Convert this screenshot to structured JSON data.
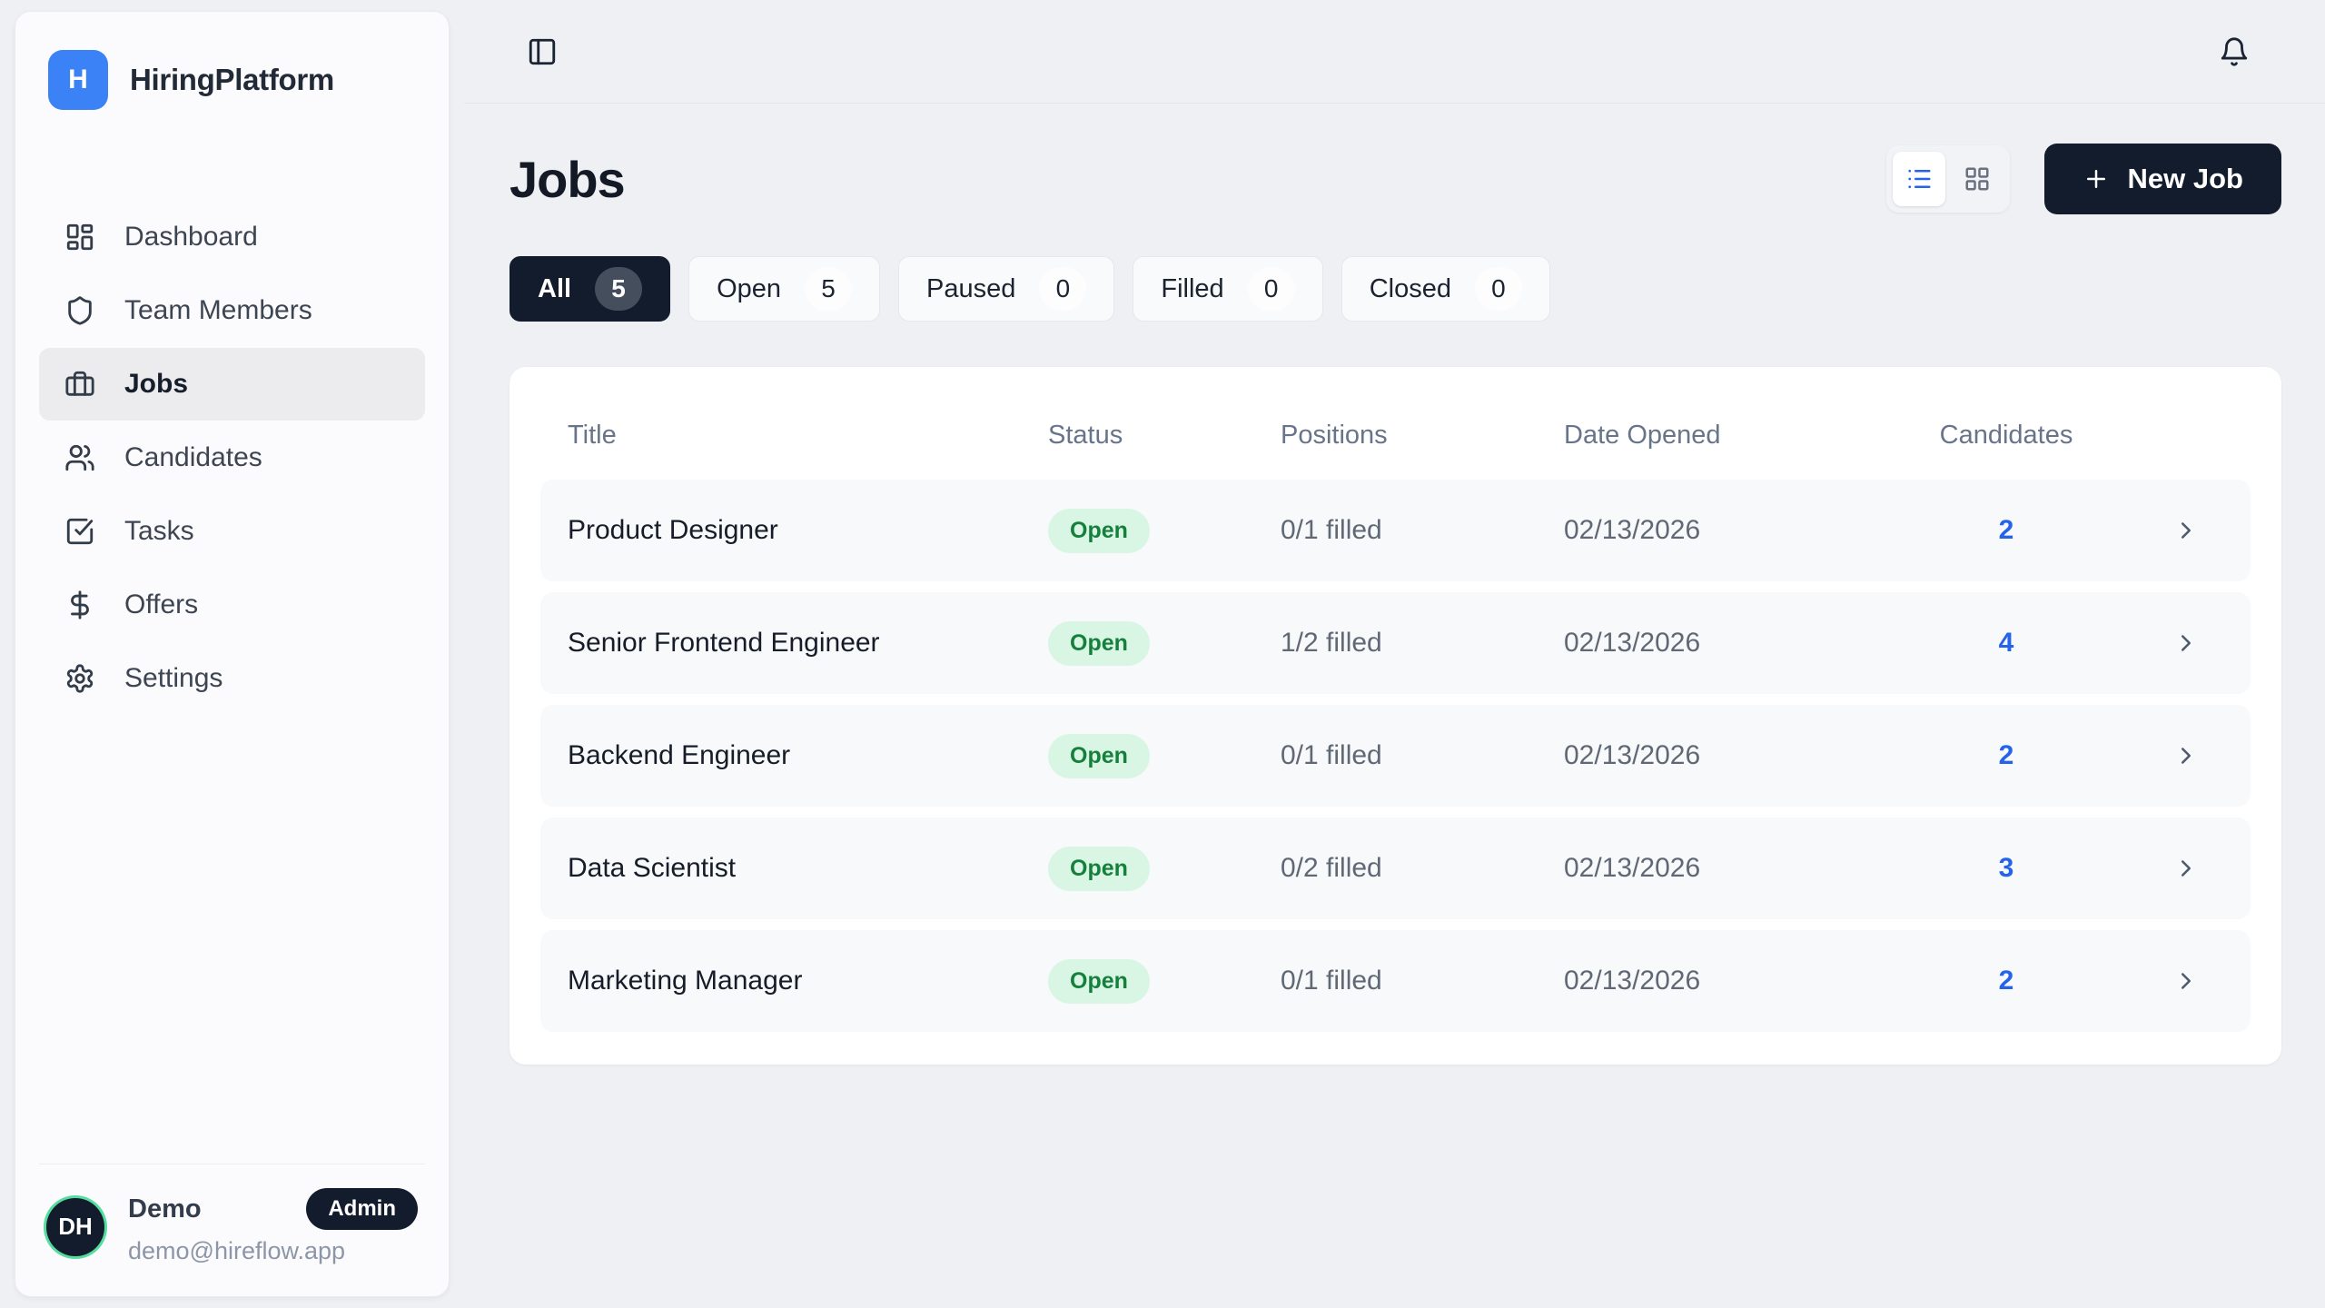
{
  "brand": {
    "initial": "H",
    "name": "HiringPlatform"
  },
  "sidebar": {
    "items": [
      {
        "label": "Dashboard",
        "icon": "dashboard",
        "active": false
      },
      {
        "label": "Team Members",
        "icon": "shield",
        "active": false
      },
      {
        "label": "Jobs",
        "icon": "briefcase",
        "active": true
      },
      {
        "label": "Candidates",
        "icon": "users",
        "active": false
      },
      {
        "label": "Tasks",
        "icon": "tasks",
        "active": false
      },
      {
        "label": "Offers",
        "icon": "dollar",
        "active": false
      },
      {
        "label": "Settings",
        "icon": "gear",
        "active": false
      }
    ]
  },
  "user": {
    "initials": "DH",
    "name": "Demo",
    "role_badge": "Admin",
    "email": "demo@hireflow.app"
  },
  "page": {
    "title": "Jobs"
  },
  "toolbar": {
    "new_job_label": "New Job"
  },
  "filters": [
    {
      "label": "All",
      "count": "5",
      "active": true
    },
    {
      "label": "Open",
      "count": "5",
      "active": false
    },
    {
      "label": "Paused",
      "count": "0",
      "active": false
    },
    {
      "label": "Filled",
      "count": "0",
      "active": false
    },
    {
      "label": "Closed",
      "count": "0",
      "active": false
    }
  ],
  "table": {
    "headers": {
      "title": "Title",
      "status": "Status",
      "positions": "Positions",
      "date_opened": "Date Opened",
      "candidates": "Candidates"
    },
    "rows": [
      {
        "title": "Product Designer",
        "status": "Open",
        "positions": "0/1 filled",
        "date_opened": "02/13/2026",
        "candidates": "2"
      },
      {
        "title": "Senior Frontend Engineer",
        "status": "Open",
        "positions": "1/2 filled",
        "date_opened": "02/13/2026",
        "candidates": "4"
      },
      {
        "title": "Backend Engineer",
        "status": "Open",
        "positions": "0/1 filled",
        "date_opened": "02/13/2026",
        "candidates": "2"
      },
      {
        "title": "Data Scientist",
        "status": "Open",
        "positions": "0/2 filled",
        "date_opened": "02/13/2026",
        "candidates": "3"
      },
      {
        "title": "Marketing Manager",
        "status": "Open",
        "positions": "0/1 filled",
        "date_opened": "02/13/2026",
        "candidates": "2"
      }
    ]
  },
  "icons": {
    "topbar_left": "panel-left",
    "topbar_right": "bell",
    "view_modes": [
      "list",
      "grid"
    ],
    "new_job": "plus",
    "row_action": "chevron-right"
  },
  "colors": {
    "accent_blue": "#3b82f6",
    "link_blue": "#2563eb",
    "dark_navy": "#131c2d",
    "page_bg": "#eef0f3",
    "open_badge_bg": "#d9f6e4",
    "open_badge_text": "#157f3c",
    "avatar_ring": "#55dd9e"
  }
}
